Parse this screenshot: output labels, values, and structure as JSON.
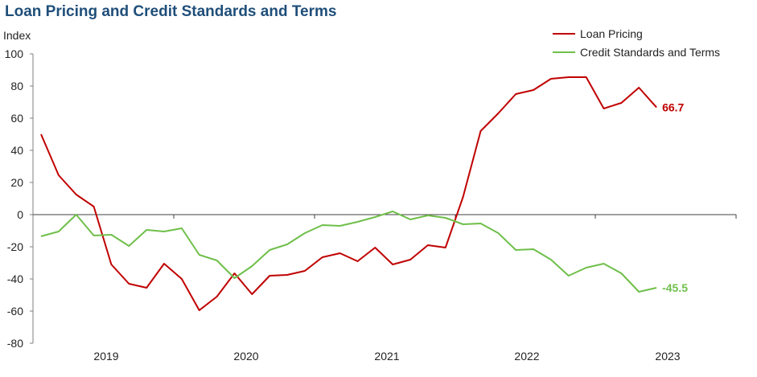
{
  "chart_data": {
    "type": "line",
    "title": "Loan Pricing  and Credit Standards and Terms",
    "ylabel": "Index",
    "xlabel": "",
    "ylim": [
      -80,
      100
    ],
    "yticks": [
      100,
      80,
      60,
      40,
      20,
      0,
      -20,
      -40,
      -60,
      -80
    ],
    "x_tick_labels": [
      "2019",
      "2020",
      "2021",
      "2022",
      "2023"
    ],
    "legend_position": "top-right",
    "grid": false,
    "series": [
      {
        "name": "Loan Pricing",
        "color": "#c00000",
        "end_label": "66.7",
        "values": [
          50,
          24.5,
          12.5,
          5,
          -31,
          -43,
          -45.5,
          -30.5,
          -40,
          -59.5,
          -51,
          -36.5,
          -49.5,
          -38,
          -37.5,
          -35,
          -26.5,
          -24,
          -29,
          -20.5,
          -31,
          -28,
          -19,
          -20.5,
          11,
          52,
          63,
          75,
          77.5,
          84.5,
          85.5,
          85.5,
          66,
          69.5,
          79,
          66.7
        ]
      },
      {
        "name": "Credit Standards and Terms",
        "color": "#6fbf4a",
        "end_label": "-45.5",
        "values": [
          -13.5,
          -10.5,
          0,
          -13,
          -12.5,
          -19.5,
          -9.5,
          -10.5,
          -8.5,
          -25,
          -28.5,
          -39.5,
          -32,
          -22,
          -18.5,
          -11.5,
          -6.5,
          -7,
          -4.5,
          -1.5,
          2,
          -3,
          -0.5,
          -2,
          -6,
          -5.5,
          -11.5,
          -22,
          -21.5,
          -28,
          -38,
          -33,
          -30.5,
          -36.5,
          -48,
          -45.5
        ]
      }
    ]
  }
}
